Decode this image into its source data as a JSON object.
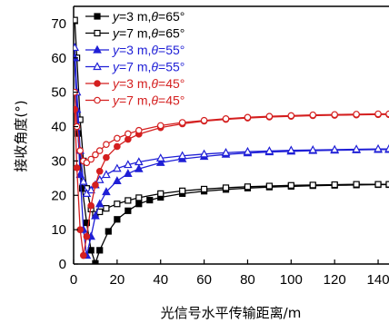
{
  "chart_data": {
    "type": "line",
    "xlabel": "光信号水平传输距离/m",
    "ylabel": "接收角度(°)",
    "xlim": [
      0,
      145
    ],
    "ylim": [
      0,
      75
    ],
    "xticks": [
      "0",
      "20",
      "40",
      "60",
      "80",
      "100",
      "120",
      "140"
    ],
    "yticks": [
      "0",
      "10",
      "20",
      "30",
      "40",
      "50",
      "60",
      "70"
    ],
    "grid": false,
    "legend_position": "top-left",
    "series": [
      {
        "name": "y=3 m,θ=65°",
        "legend": {
          "v": "y",
          "a": "=3 m,",
          "t": "θ",
          "b": "=65°"
        },
        "color": "#000000",
        "marker": "square-filled",
        "x": [
          0.5,
          2,
          4,
          6,
          8,
          10,
          12,
          16,
          20,
          25,
          30,
          35,
          40,
          50,
          60,
          70,
          80,
          90,
          100,
          110,
          120,
          130,
          140,
          145
        ],
        "y": [
          60,
          38,
          22,
          12,
          4,
          0.2,
          4,
          9.5,
          13,
          15.5,
          17.5,
          18.6,
          19.4,
          20.5,
          21.2,
          21.7,
          22.1,
          22.4,
          22.6,
          22.8,
          22.9,
          23.0,
          23.1,
          23.1
        ]
      },
      {
        "name": "y=7 m,θ=65°",
        "legend": {
          "v": "y",
          "a": "=7 m,",
          "t": "θ",
          "b": "=65°"
        },
        "color": "#000000",
        "marker": "square-open",
        "x": [
          0.5,
          1.5,
          3,
          4.5,
          6,
          8,
          10,
          12,
          15,
          20,
          25,
          30,
          40,
          50,
          60,
          70,
          80,
          90,
          100,
          110,
          120,
          130,
          140,
          145
        ],
        "y": [
          71,
          60,
          42,
          30,
          22,
          16,
          14.5,
          15.2,
          16.2,
          17.5,
          18.5,
          19.3,
          20.5,
          21.3,
          21.8,
          22.2,
          22.5,
          22.7,
          22.9,
          23.0,
          23.1,
          23.2,
          23.2,
          23.2
        ]
      },
      {
        "name": "y=3 m,θ=55°",
        "legend": {
          "v": "y",
          "a": "=3 m,",
          "t": "θ",
          "b": "=55°"
        },
        "color": "#1f1fd6",
        "marker": "triangle-filled",
        "x": [
          0.5,
          1.5,
          3,
          4.5,
          6,
          8,
          10,
          12,
          15,
          20,
          25,
          30,
          40,
          50,
          60,
          70,
          80,
          90,
          100,
          110,
          120,
          130,
          140,
          145
        ],
        "y": [
          60,
          45,
          26,
          10,
          2.5,
          8,
          14,
          17.5,
          21,
          24.2,
          26.3,
          27.7,
          29.5,
          30.6,
          31.3,
          31.9,
          32.3,
          32.6,
          32.8,
          33.0,
          33.1,
          33.2,
          33.3,
          33.3
        ]
      },
      {
        "name": "y=7 m,θ=55°",
        "legend": {
          "v": "y",
          "a": "=7 m,",
          "t": "θ",
          "b": "=55°"
        },
        "color": "#1f1fd6",
        "marker": "triangle-open",
        "x": [
          0.5,
          1.5,
          3,
          4.5,
          6,
          8,
          10,
          12,
          15,
          20,
          25,
          30,
          40,
          50,
          60,
          70,
          80,
          90,
          100,
          110,
          120,
          130,
          140,
          145
        ],
        "y": [
          63,
          50,
          33,
          24,
          20.5,
          21.5,
          23,
          24.5,
          26,
          27.8,
          28.9,
          29.7,
          30.8,
          31.5,
          32.0,
          32.4,
          32.7,
          32.9,
          33.1,
          33.2,
          33.3,
          33.4,
          33.5,
          33.5
        ]
      },
      {
        "name": "y=3 m,θ=45°",
        "legend": {
          "v": "y",
          "a": "=3 m,",
          "t": "θ",
          "b": "=45°"
        },
        "color": "#d41f1f",
        "marker": "circle-filled",
        "x": [
          0.5,
          1.5,
          3,
          4.5,
          6,
          8,
          10,
          12,
          15,
          20,
          25,
          30,
          40,
          50,
          60,
          70,
          80,
          90,
          100,
          110,
          120,
          130,
          140,
          145
        ],
        "y": [
          45,
          28,
          10,
          2.5,
          8,
          17,
          23,
          27,
          31,
          34.2,
          36.3,
          37.8,
          39.7,
          40.8,
          41.6,
          42.1,
          42.5,
          42.8,
          43.0,
          43.2,
          43.3,
          43.4,
          43.5,
          43.5
        ]
      },
      {
        "name": "y=7 m,θ=45°",
        "legend": {
          "v": "y",
          "a": "=7 m,",
          "t": "θ",
          "b": "=45°"
        },
        "color": "#d41f1f",
        "marker": "circle-open",
        "x": [
          0.5,
          1.5,
          3,
          4.5,
          6,
          8,
          10,
          12,
          15,
          20,
          25,
          30,
          40,
          50,
          60,
          70,
          80,
          90,
          100,
          110,
          120,
          130,
          140,
          145
        ],
        "y": [
          50,
          40,
          33,
          30,
          29.5,
          30.5,
          31.8,
          33,
          34.8,
          36.6,
          37.9,
          38.9,
          40.3,
          41.2,
          41.8,
          42.3,
          42.7,
          43.0,
          43.2,
          43.4,
          43.5,
          43.6,
          43.7,
          43.7
        ]
      }
    ]
  }
}
